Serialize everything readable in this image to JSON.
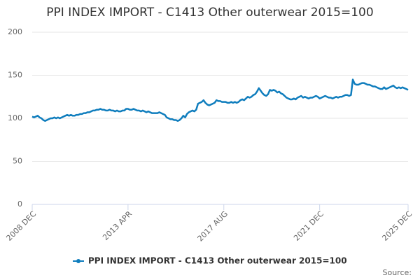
{
  "chart_data": {
    "type": "line",
    "title": "PPI INDEX IMPORT - C1413 Other outerwear 2015=100",
    "source": "Source:",
    "categories": [
      "2008 DEC",
      null,
      null,
      null,
      null,
      null,
      null,
      null,
      null,
      null,
      null,
      null,
      null,
      null,
      null,
      null,
      null,
      null,
      null,
      null,
      null,
      null,
      null,
      null,
      null,
      null,
      null,
      null,
      null,
      null,
      null,
      null,
      null,
      null,
      null,
      null,
      null,
      null,
      null,
      null,
      null,
      null,
      null,
      null,
      null,
      null,
      null,
      null,
      null,
      null,
      null,
      null,
      "2013 APR",
      null,
      null,
      null,
      null,
      null,
      null,
      null,
      null,
      null,
      null,
      null,
      null,
      null,
      null,
      null,
      null,
      null,
      null,
      null,
      null,
      null,
      null,
      null,
      null,
      null,
      null,
      null,
      null,
      null,
      null,
      null,
      null,
      null,
      null,
      null,
      null,
      null,
      null,
      null,
      null,
      null,
      null,
      null,
      null,
      null,
      null,
      null,
      null,
      null,
      null,
      null,
      "2017 AUG",
      null,
      null,
      null,
      null,
      null,
      null,
      null,
      null,
      null,
      null,
      null,
      null,
      null,
      null,
      null,
      null,
      null,
      null,
      null,
      null,
      null,
      null,
      null,
      null,
      null,
      null,
      null,
      null,
      null,
      null,
      null,
      null,
      null,
      null,
      null,
      null,
      null,
      null,
      null,
      null,
      null,
      null,
      null,
      null,
      null,
      null,
      null,
      null,
      null,
      null,
      null,
      "2021 DEC",
      null,
      null,
      null,
      null,
      null,
      null,
      null,
      null,
      null,
      null,
      null,
      null,
      null,
      null,
      null,
      null,
      null,
      null,
      null,
      null,
      null,
      null,
      null,
      null,
      null,
      null,
      null,
      null,
      null,
      null,
      null,
      null,
      null,
      null,
      null,
      null,
      null,
      null,
      null,
      null,
      null,
      null,
      null,
      null,
      null,
      null,
      null,
      "2025 DEC"
    ],
    "series": [
      {
        "name": "PPI INDEX IMPORT - C1413 Other outerwear 2015=100",
        "color": "#0f7dbd",
        "values": [
          102,
          101,
          102,
          103,
          101,
          100,
          98,
          97,
          98,
          99,
          100,
          100,
          101,
          100,
          101,
          100,
          101,
          102,
          103,
          104,
          103,
          104,
          103,
          103,
          104,
          104,
          105,
          105,
          106,
          106,
          107,
          107,
          108,
          109,
          109,
          110,
          110,
          111,
          110,
          110,
          109,
          109,
          110,
          109,
          109,
          108,
          109,
          108,
          108,
          109,
          109,
          111,
          111,
          110,
          110,
          111,
          110,
          109,
          109,
          108,
          109,
          108,
          107,
          108,
          107,
          106,
          106,
          106,
          106,
          107,
          106,
          105,
          104,
          101,
          100,
          99,
          99,
          98,
          98,
          97,
          98,
          100,
          103,
          101,
          105,
          107,
          108,
          109,
          108,
          110,
          117,
          118,
          119,
          121,
          118,
          116,
          115,
          116,
          117,
          118,
          121,
          120,
          120,
          119,
          119,
          119,
          118,
          118,
          119,
          118,
          119,
          118,
          119,
          121,
          122,
          121,
          123,
          125,
          124,
          125,
          127,
          128,
          131,
          135,
          132,
          129,
          127,
          126,
          128,
          133,
          132,
          133,
          132,
          130,
          131,
          129,
          128,
          126,
          124,
          123,
          122,
          122,
          123,
          122,
          124,
          125,
          126,
          124,
          125,
          124,
          123,
          124,
          124,
          125,
          126,
          125,
          123,
          124,
          125,
          126,
          125,
          124,
          124,
          123,
          124,
          125,
          124,
          125,
          125,
          126,
          127,
          127,
          126,
          127,
          145,
          140,
          139,
          139,
          140,
          141,
          141,
          140,
          139,
          139,
          138,
          137,
          137,
          136,
          135,
          134,
          134,
          136,
          134,
          135,
          136,
          137,
          138,
          136,
          135,
          136,
          135,
          136,
          135,
          134,
          133
        ]
      }
    ],
    "ylim": [
      0,
      200
    ],
    "yticks": [
      0,
      50,
      100,
      150,
      200
    ],
    "grid": true
  }
}
